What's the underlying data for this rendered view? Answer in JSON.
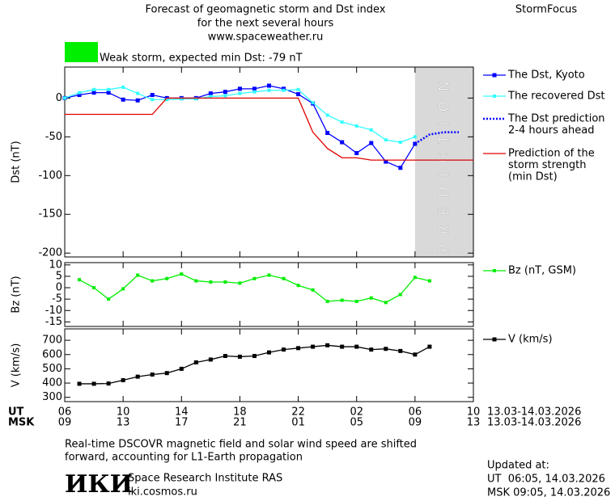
{
  "header": {
    "title_lines": [
      "Forecast of geomagnetic storm and Dst index",
      "for the next several hours",
      "www.spaceweather.ru"
    ],
    "brand": "StormFocus"
  },
  "storm": {
    "label": "Weak storm, expected min Dst: -79 nT",
    "color": "#00ee00"
  },
  "time_axis": {
    "xlim": [
      0,
      28
    ],
    "xticks": [
      0,
      4,
      8,
      12,
      16,
      20,
      24,
      28
    ],
    "rows": [
      {
        "name": "UT",
        "labels": [
          "06",
          "10",
          "14",
          "18",
          "22",
          "02",
          "06",
          "10"
        ],
        "date": "13.03-14.03.2026"
      },
      {
        "name": "MSK",
        "labels": [
          "09",
          "13",
          "17",
          "21",
          "01",
          "05",
          "09",
          "13"
        ],
        "date": "13.03-14.03.2026"
      }
    ]
  },
  "chart_data": [
    {
      "type": "line",
      "ylabel": "Dst (nT)",
      "ylim": [
        -205,
        40
      ],
      "yticks": [
        0,
        -50,
        -100,
        -150,
        -200
      ],
      "prediction": {
        "label": "PREDICTION",
        "x": [
          24,
          28
        ],
        "color": "#d9d9d9"
      },
      "series": [
        {
          "name": [
            "The Dst, Kyoto"
          ],
          "color": "#0000ff",
          "marker": 5,
          "dash": "none",
          "x": [
            0,
            1,
            2,
            3,
            4,
            5,
            6,
            7,
            8,
            9,
            10,
            11,
            12,
            13,
            14,
            15,
            16,
            17,
            18,
            19,
            20,
            21,
            22,
            23,
            24
          ],
          "values": [
            0,
            4,
            7,
            7,
            -2,
            -3,
            4,
            0,
            0,
            0,
            6,
            8,
            12,
            12,
            16,
            12,
            5,
            -7,
            -45,
            -57,
            -71,
            -58,
            -82,
            -90,
            -59
          ]
        },
        {
          "name": [
            "The recovered Dst"
          ],
          "color": "#33ffff",
          "marker": 4,
          "dash": "none",
          "x": [
            0,
            1,
            2,
            3,
            4,
            5,
            6,
            7,
            8,
            9,
            10,
            11,
            12,
            13,
            14,
            15,
            16,
            17,
            18,
            19,
            20,
            21,
            22,
            23,
            24
          ],
          "values": [
            0,
            7,
            11,
            11,
            14,
            6,
            -2,
            -2,
            -1,
            -1,
            2,
            3,
            6,
            8,
            10,
            10,
            11,
            -6,
            -22,
            -31,
            -36,
            -41,
            -54,
            -57,
            -50
          ]
        },
        {
          "name": [
            "The Dst prediction",
            "2-4 hours ahead"
          ],
          "color": "#0000ff",
          "marker": 0,
          "dash": "2 2",
          "x": [
            24,
            25,
            26,
            27
          ],
          "values": [
            -59,
            -47,
            -44,
            -44
          ]
        },
        {
          "name": [
            "Prediction of the",
            "storm strength",
            "(min Dst)"
          ],
          "color": "#e00000",
          "marker": 0,
          "dash": "none",
          "x": [
            0,
            6,
            7,
            16,
            17,
            18,
            19,
            20,
            21,
            28
          ],
          "values": [
            -21,
            -21,
            0,
            0,
            -44,
            -65,
            -77,
            -77,
            -80,
            -80
          ]
        }
      ]
    },
    {
      "type": "line",
      "ylabel": "Bz (nT)",
      "ylim": [
        -17,
        11
      ],
      "yticks": [
        10,
        5,
        0,
        -5,
        -10,
        -15
      ],
      "series": [
        {
          "name": [
            "Bz (nT, GSM)"
          ],
          "color": "#00ee00",
          "marker": 4,
          "dash": "none",
          "x": [
            1,
            2,
            3,
            4,
            5,
            6,
            7,
            8,
            9,
            10,
            11,
            12,
            13,
            14,
            15,
            16,
            17,
            18,
            19,
            20,
            21,
            22,
            23,
            24,
            25
          ],
          "values": [
            3.5,
            0,
            -5,
            -0.5,
            5.5,
            3,
            4,
            6,
            3,
            2.5,
            2.5,
            2,
            4,
            5.5,
            4,
            1,
            -1,
            -6,
            -5.5,
            -6,
            -4.5,
            -6.5,
            -3,
            4.5,
            3
          ]
        }
      ]
    },
    {
      "type": "line",
      "ylabel": "V (km/s)",
      "ylim": [
        270,
        780
      ],
      "yticks": [
        700,
        600,
        500,
        400,
        300
      ],
      "series": [
        {
          "name": [
            "V (km/s)"
          ],
          "color": "#000000",
          "marker": 5,
          "dash": "none",
          "x": [
            1,
            2,
            3,
            4,
            5,
            6,
            7,
            8,
            9,
            10,
            11,
            12,
            13,
            14,
            15,
            16,
            17,
            18,
            19,
            20,
            21,
            22,
            23,
            24,
            25
          ],
          "values": [
            395,
            395,
            397,
            420,
            445,
            460,
            470,
            500,
            545,
            565,
            590,
            585,
            590,
            615,
            635,
            645,
            655,
            665,
            655,
            655,
            635,
            640,
            625,
            600,
            655
          ]
        }
      ]
    }
  ],
  "footer": {
    "note_lines": [
      "Real-time DSCOVR magnetic field and solar wind speed are shifted",
      "forward, accounting for L1-Earth propagation"
    ],
    "logo": "ИКИ",
    "institute": "Space Research Institute RAS",
    "site": "iki.cosmos.ru",
    "updated": [
      "Updated at:",
      "UT  06:05, 14.03.2026",
      "MSK 09:05, 14.03.2026"
    ]
  }
}
